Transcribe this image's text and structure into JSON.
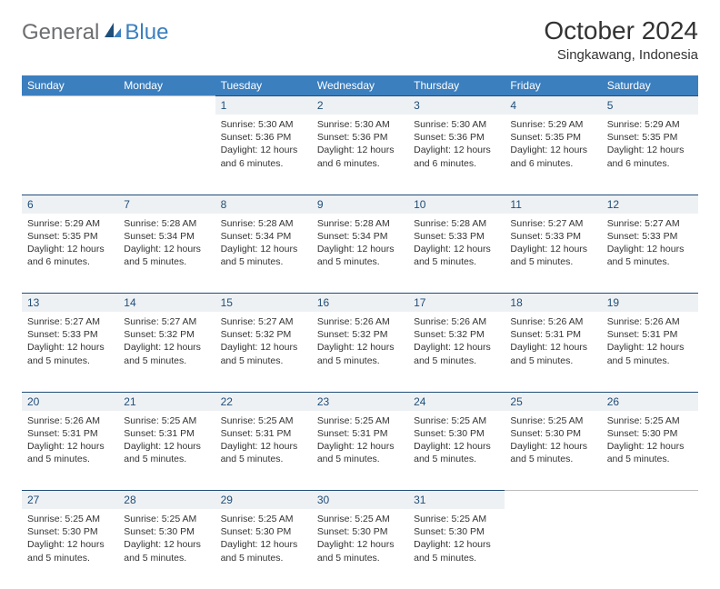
{
  "logo": {
    "text1": "General",
    "text2": "Blue"
  },
  "title": "October 2024",
  "location": "Singkawang, Indonesia",
  "colors": {
    "header_bg": "#3b7fbf",
    "header_text": "#ffffff",
    "daynum_bg": "#eef1f4",
    "daynum_border": "#1f4e79",
    "daynum_text": "#1f4e79",
    "body_text": "#333333",
    "logo_gray": "#6d6e71",
    "logo_blue": "#3b7fbf"
  },
  "dayHeaders": [
    "Sunday",
    "Monday",
    "Tuesday",
    "Wednesday",
    "Thursday",
    "Friday",
    "Saturday"
  ],
  "weeks": [
    [
      {
        "day": "",
        "sunrise": "",
        "sunset": "",
        "daylight": ""
      },
      {
        "day": "",
        "sunrise": "",
        "sunset": "",
        "daylight": ""
      },
      {
        "day": "1",
        "sunrise": "Sunrise: 5:30 AM",
        "sunset": "Sunset: 5:36 PM",
        "daylight": "Daylight: 12 hours and 6 minutes."
      },
      {
        "day": "2",
        "sunrise": "Sunrise: 5:30 AM",
        "sunset": "Sunset: 5:36 PM",
        "daylight": "Daylight: 12 hours and 6 minutes."
      },
      {
        "day": "3",
        "sunrise": "Sunrise: 5:30 AM",
        "sunset": "Sunset: 5:36 PM",
        "daylight": "Daylight: 12 hours and 6 minutes."
      },
      {
        "day": "4",
        "sunrise": "Sunrise: 5:29 AM",
        "sunset": "Sunset: 5:35 PM",
        "daylight": "Daylight: 12 hours and 6 minutes."
      },
      {
        "day": "5",
        "sunrise": "Sunrise: 5:29 AM",
        "sunset": "Sunset: 5:35 PM",
        "daylight": "Daylight: 12 hours and 6 minutes."
      }
    ],
    [
      {
        "day": "6",
        "sunrise": "Sunrise: 5:29 AM",
        "sunset": "Sunset: 5:35 PM",
        "daylight": "Daylight: 12 hours and 6 minutes."
      },
      {
        "day": "7",
        "sunrise": "Sunrise: 5:28 AM",
        "sunset": "Sunset: 5:34 PM",
        "daylight": "Daylight: 12 hours and 5 minutes."
      },
      {
        "day": "8",
        "sunrise": "Sunrise: 5:28 AM",
        "sunset": "Sunset: 5:34 PM",
        "daylight": "Daylight: 12 hours and 5 minutes."
      },
      {
        "day": "9",
        "sunrise": "Sunrise: 5:28 AM",
        "sunset": "Sunset: 5:34 PM",
        "daylight": "Daylight: 12 hours and 5 minutes."
      },
      {
        "day": "10",
        "sunrise": "Sunrise: 5:28 AM",
        "sunset": "Sunset: 5:33 PM",
        "daylight": "Daylight: 12 hours and 5 minutes."
      },
      {
        "day": "11",
        "sunrise": "Sunrise: 5:27 AM",
        "sunset": "Sunset: 5:33 PM",
        "daylight": "Daylight: 12 hours and 5 minutes."
      },
      {
        "day": "12",
        "sunrise": "Sunrise: 5:27 AM",
        "sunset": "Sunset: 5:33 PM",
        "daylight": "Daylight: 12 hours and 5 minutes."
      }
    ],
    [
      {
        "day": "13",
        "sunrise": "Sunrise: 5:27 AM",
        "sunset": "Sunset: 5:33 PM",
        "daylight": "Daylight: 12 hours and 5 minutes."
      },
      {
        "day": "14",
        "sunrise": "Sunrise: 5:27 AM",
        "sunset": "Sunset: 5:32 PM",
        "daylight": "Daylight: 12 hours and 5 minutes."
      },
      {
        "day": "15",
        "sunrise": "Sunrise: 5:27 AM",
        "sunset": "Sunset: 5:32 PM",
        "daylight": "Daylight: 12 hours and 5 minutes."
      },
      {
        "day": "16",
        "sunrise": "Sunrise: 5:26 AM",
        "sunset": "Sunset: 5:32 PM",
        "daylight": "Daylight: 12 hours and 5 minutes."
      },
      {
        "day": "17",
        "sunrise": "Sunrise: 5:26 AM",
        "sunset": "Sunset: 5:32 PM",
        "daylight": "Daylight: 12 hours and 5 minutes."
      },
      {
        "day": "18",
        "sunrise": "Sunrise: 5:26 AM",
        "sunset": "Sunset: 5:31 PM",
        "daylight": "Daylight: 12 hours and 5 minutes."
      },
      {
        "day": "19",
        "sunrise": "Sunrise: 5:26 AM",
        "sunset": "Sunset: 5:31 PM",
        "daylight": "Daylight: 12 hours and 5 minutes."
      }
    ],
    [
      {
        "day": "20",
        "sunrise": "Sunrise: 5:26 AM",
        "sunset": "Sunset: 5:31 PM",
        "daylight": "Daylight: 12 hours and 5 minutes."
      },
      {
        "day": "21",
        "sunrise": "Sunrise: 5:25 AM",
        "sunset": "Sunset: 5:31 PM",
        "daylight": "Daylight: 12 hours and 5 minutes."
      },
      {
        "day": "22",
        "sunrise": "Sunrise: 5:25 AM",
        "sunset": "Sunset: 5:31 PM",
        "daylight": "Daylight: 12 hours and 5 minutes."
      },
      {
        "day": "23",
        "sunrise": "Sunrise: 5:25 AM",
        "sunset": "Sunset: 5:31 PM",
        "daylight": "Daylight: 12 hours and 5 minutes."
      },
      {
        "day": "24",
        "sunrise": "Sunrise: 5:25 AM",
        "sunset": "Sunset: 5:30 PM",
        "daylight": "Daylight: 12 hours and 5 minutes."
      },
      {
        "day": "25",
        "sunrise": "Sunrise: 5:25 AM",
        "sunset": "Sunset: 5:30 PM",
        "daylight": "Daylight: 12 hours and 5 minutes."
      },
      {
        "day": "26",
        "sunrise": "Sunrise: 5:25 AM",
        "sunset": "Sunset: 5:30 PM",
        "daylight": "Daylight: 12 hours and 5 minutes."
      }
    ],
    [
      {
        "day": "27",
        "sunrise": "Sunrise: 5:25 AM",
        "sunset": "Sunset: 5:30 PM",
        "daylight": "Daylight: 12 hours and 5 minutes."
      },
      {
        "day": "28",
        "sunrise": "Sunrise: 5:25 AM",
        "sunset": "Sunset: 5:30 PM",
        "daylight": "Daylight: 12 hours and 5 minutes."
      },
      {
        "day": "29",
        "sunrise": "Sunrise: 5:25 AM",
        "sunset": "Sunset: 5:30 PM",
        "daylight": "Daylight: 12 hours and 5 minutes."
      },
      {
        "day": "30",
        "sunrise": "Sunrise: 5:25 AM",
        "sunset": "Sunset: 5:30 PM",
        "daylight": "Daylight: 12 hours and 5 minutes."
      },
      {
        "day": "31",
        "sunrise": "Sunrise: 5:25 AM",
        "sunset": "Sunset: 5:30 PM",
        "daylight": "Daylight: 12 hours and 5 minutes."
      },
      {
        "day": "",
        "sunrise": "",
        "sunset": "",
        "daylight": ""
      },
      {
        "day": "",
        "sunrise": "",
        "sunset": "",
        "daylight": ""
      }
    ]
  ]
}
